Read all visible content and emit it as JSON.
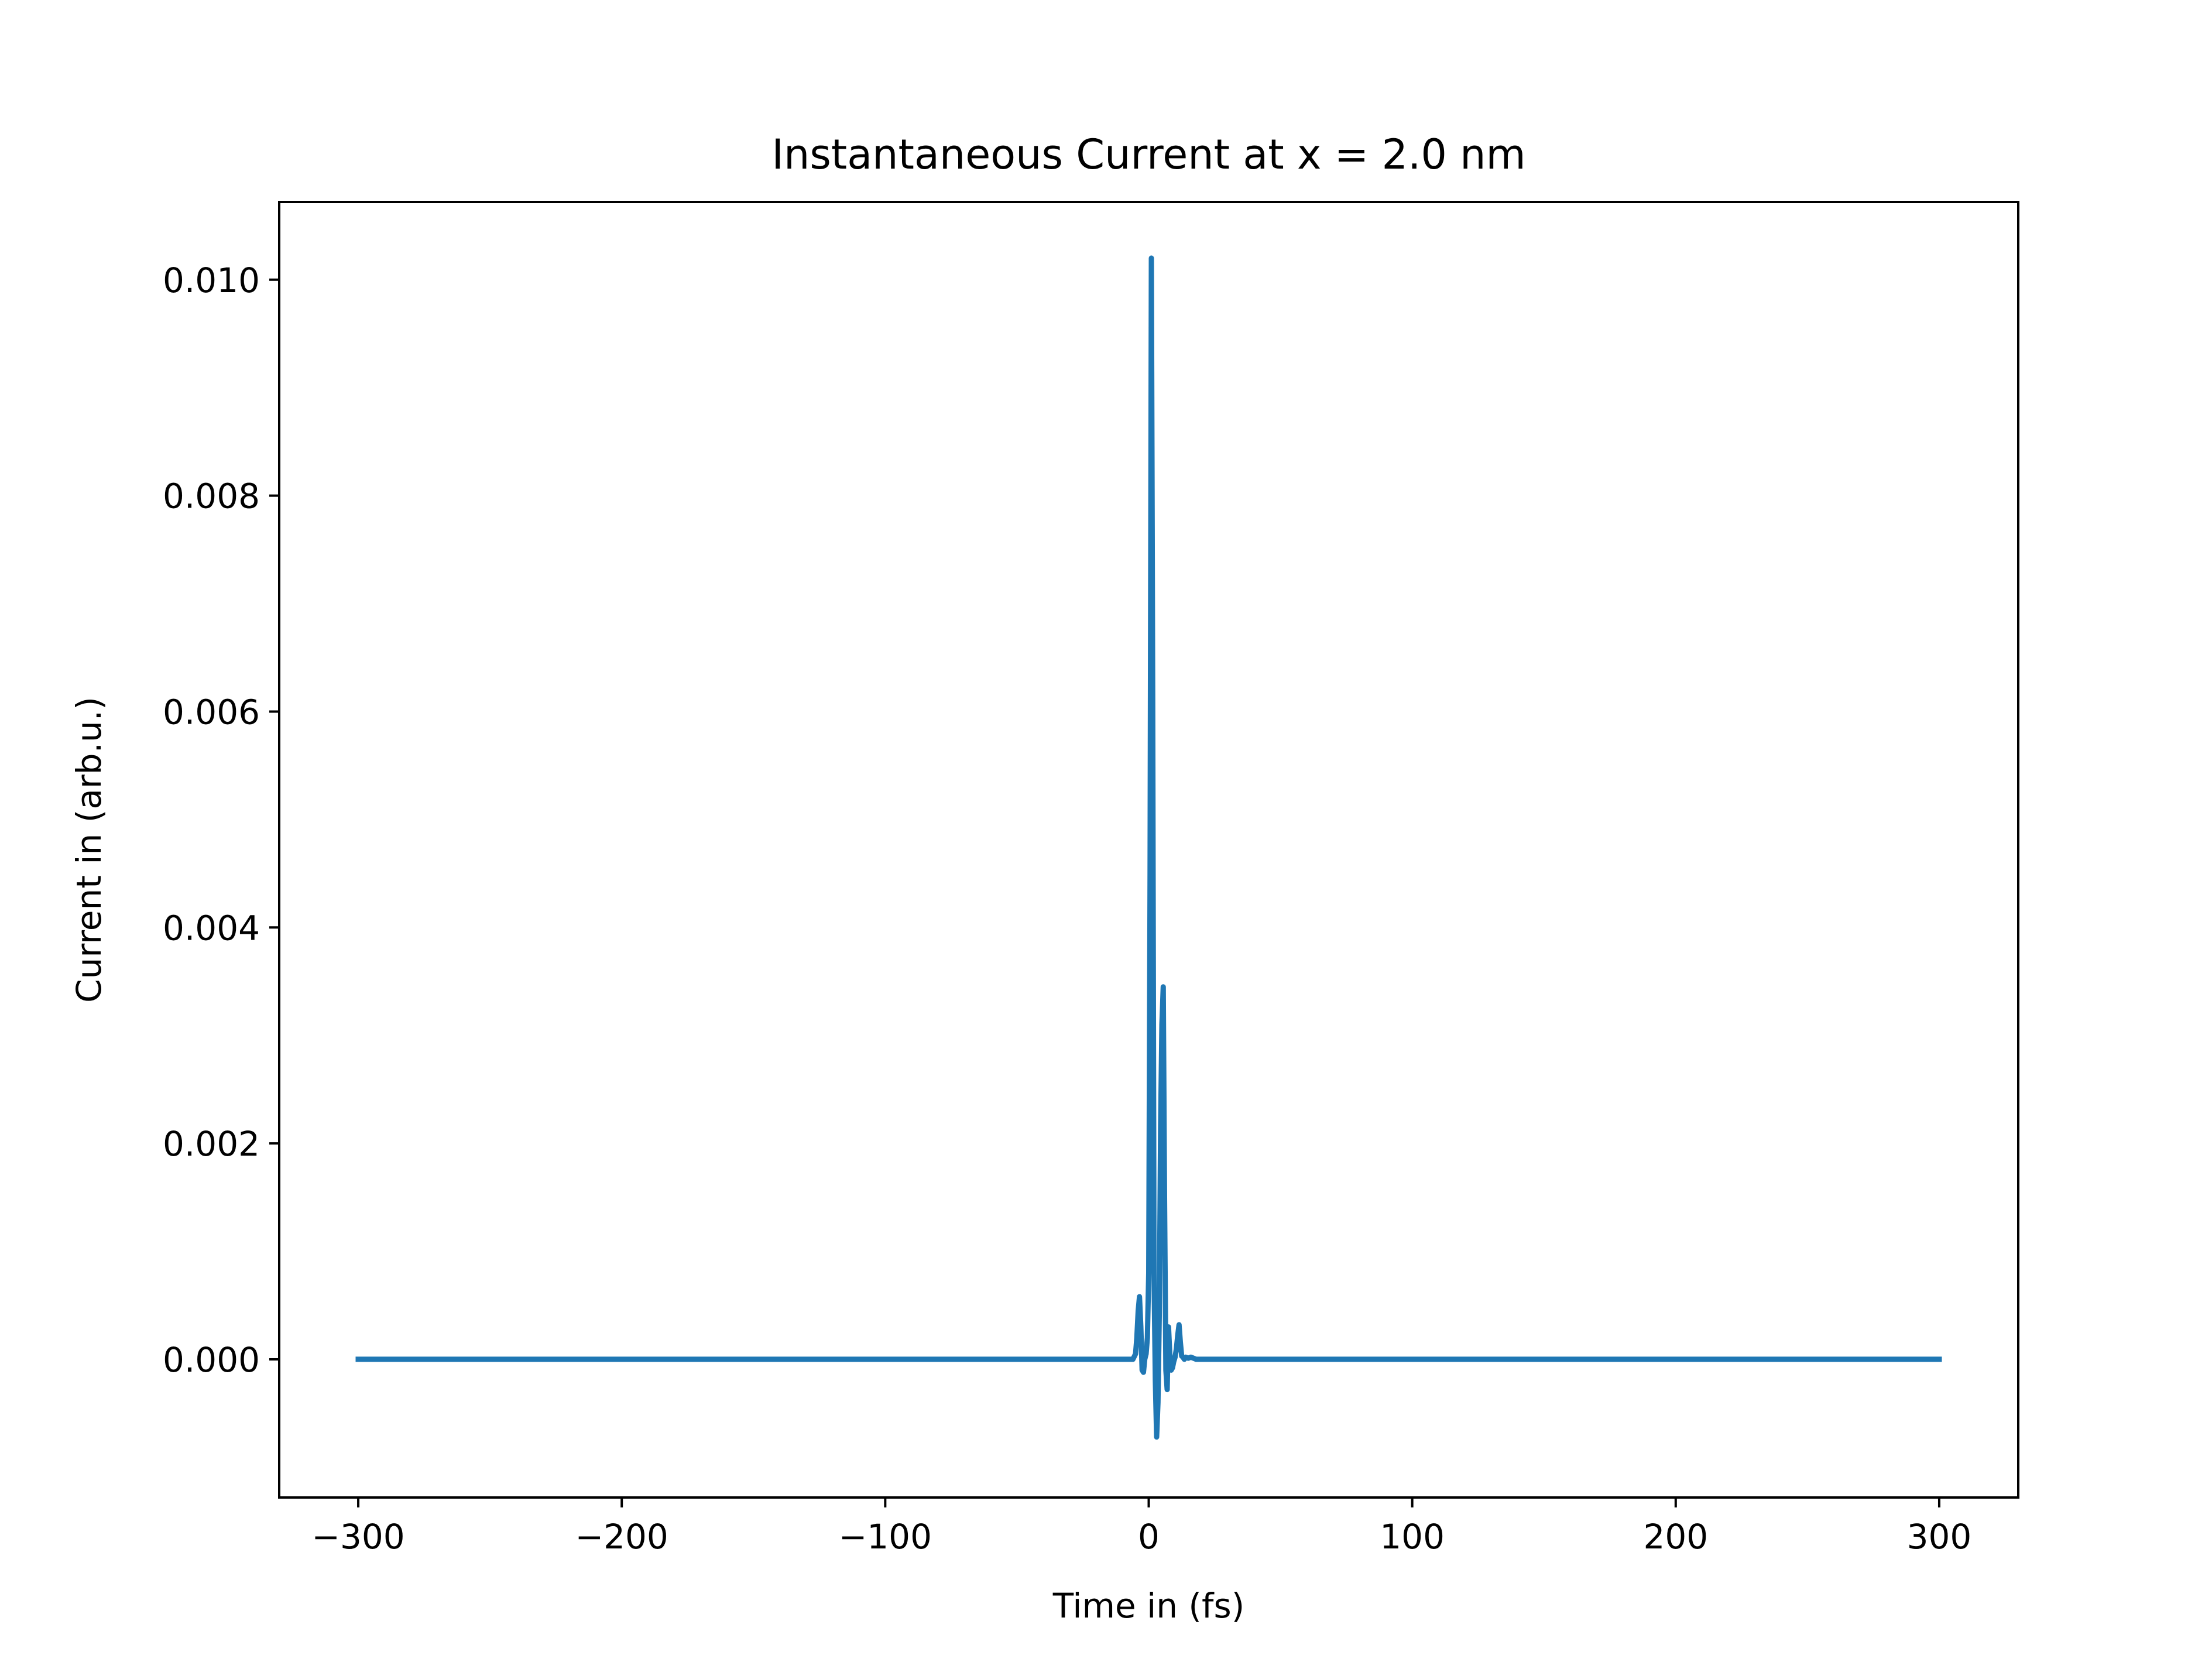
{
  "chart_data": {
    "type": "line",
    "title": "Instantaneous Current at x = 2.0 nm",
    "xlabel": "Time in (fs)",
    "ylabel": "Current in (arb.u.)",
    "xlim": [
      -330,
      330
    ],
    "ylim": [
      -0.00128,
      0.01072
    ],
    "xticks": [
      -300,
      -200,
      -100,
      0,
      100,
      200,
      300
    ],
    "xtick_labels": [
      "−300",
      "−200",
      "−100",
      "0",
      "100",
      "200",
      "300"
    ],
    "yticks": [
      0.0,
      0.002,
      0.004,
      0.006,
      0.008,
      0.01
    ],
    "ytick_labels": [
      "0.000",
      "0.002",
      "0.004",
      "0.006",
      "0.008",
      "0.010"
    ],
    "grid": false,
    "series": [
      {
        "color": "#1f77b4",
        "x": [
          -300,
          -100,
          -6,
          -5,
          -4.5,
          -4,
          -3.5,
          -3,
          -2.5,
          -2,
          -1.5,
          -1,
          -0.5,
          0,
          0.5,
          1,
          1.5,
          2,
          2.5,
          3,
          3.5,
          4,
          4.5,
          5,
          5.5,
          6,
          6.5,
          7,
          7.5,
          8,
          8.5,
          9,
          9.5,
          10,
          10.5,
          11,
          11.5,
          12,
          12.5,
          13,
          13.5,
          14,
          15,
          16,
          17,
          18,
          20,
          25,
          50,
          150,
          300
        ],
        "y": [
          0.0,
          0.0,
          0.0,
          5e-05,
          0.0002,
          0.00045,
          0.00058,
          0.0003,
          -0.0001,
          -0.00012,
          0.0,
          5e-05,
          0.0002,
          0.0008,
          0.0045,
          0.0102,
          0.0061,
          0.0008,
          -0.0002,
          -0.00072,
          -0.0004,
          0.0004,
          0.00215,
          0.0031,
          0.00345,
          0.0015,
          -0.0001,
          -0.00028,
          0.0003,
          5e-05,
          -0.0001,
          -8e-05,
          -2e-05,
          2e-05,
          0.0001,
          0.00022,
          0.00032,
          0.00016,
          3e-05,
          2e-05,
          0.0,
          2e-05,
          1e-05,
          2e-05,
          1e-05,
          0.0,
          0.0,
          0.0,
          0.0,
          0.0,
          0.0
        ]
      }
    ]
  }
}
